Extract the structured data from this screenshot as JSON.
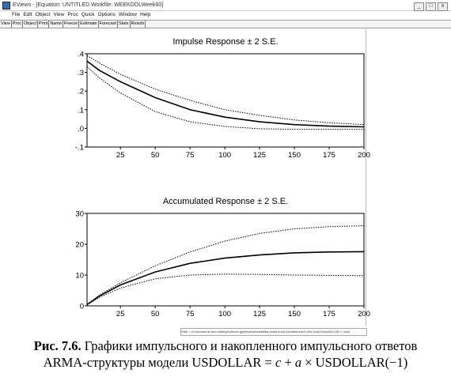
{
  "window": {
    "title": "EViews - [Equation: UNTITLED   Workfile: WEEKDOLWeek60]",
    "controls": [
      "_",
      "□",
      "x"
    ]
  },
  "menu": [
    "File",
    "Edit",
    "Object",
    "View",
    "Proc",
    "Quick",
    "Options",
    "Window",
    "Help"
  ],
  "toolbar": [
    "View",
    "Proc",
    "Object",
    "Print",
    "Name",
    "Freeze",
    "Estimate",
    "Forecast",
    "Stats",
    "Resids"
  ],
  "statusbar": "Path = d:\\documents and settings\\dir\\use.gply\\eviews\\analitika dollar book\\1\\dollarbook\\1 new book\\2month\\1 DB = none",
  "caption": {
    "prefix": "Рис. 7.6.",
    "line1_rest": " Графики импульсного и накопленного импульсного ответов",
    "line2_a": "ARMA-структуры модели USDOLLAR = ",
    "var_c": "c",
    "plus": " + ",
    "var_a": "a",
    "line2_b": " × USDOLLAR(−1)"
  },
  "colors": {
    "line": "#000000",
    "axis": "#000000",
    "background": "#ffffff"
  },
  "chart_data": [
    {
      "type": "line",
      "title": "Impulse Response ± 2 S.E.",
      "xlim": [
        1,
        200
      ],
      "ylim": [
        -0.1,
        0.4
      ],
      "xticks": [
        25,
        50,
        75,
        100,
        125,
        150,
        175,
        200
      ],
      "yticks": [
        -0.1,
        0.0,
        0.1,
        0.2,
        0.3,
        0.4
      ],
      "ytick_labels": [
        "-.1",
        ".0",
        ".1",
        ".2",
        ".3",
        ".4"
      ],
      "x": [
        1,
        10,
        25,
        50,
        75,
        100,
        125,
        150,
        175,
        200
      ],
      "series": [
        {
          "style": "dotted",
          "values": [
            0.39,
            0.35,
            0.29,
            0.21,
            0.15,
            0.1,
            0.07,
            0.045,
            0.03,
            0.02
          ]
        },
        {
          "style": "solid",
          "values": [
            0.36,
            0.31,
            0.25,
            0.165,
            0.1,
            0.06,
            0.035,
            0.02,
            0.012,
            0.008
          ]
        },
        {
          "style": "dotted",
          "values": [
            0.33,
            0.27,
            0.19,
            0.09,
            0.035,
            0.01,
            -0.002,
            -0.005,
            -0.005,
            -0.005
          ]
        }
      ]
    },
    {
      "type": "line",
      "title": "Accumulated Response ± 2 S.E.",
      "xlim": [
        1,
        200
      ],
      "ylim": [
        0,
        30
      ],
      "xticks": [
        25,
        50,
        75,
        100,
        125,
        150,
        175,
        200
      ],
      "yticks": [
        0,
        10,
        20,
        30
      ],
      "ytick_labels": [
        "0",
        "10",
        "20",
        "30"
      ],
      "x": [
        1,
        10,
        25,
        50,
        75,
        100,
        125,
        150,
        175,
        200
      ],
      "series": [
        {
          "style": "dotted",
          "values": [
            0.5,
            3.5,
            7.5,
            13.0,
            17.5,
            21.0,
            23.5,
            25.0,
            25.7,
            26.0
          ]
        },
        {
          "style": "solid",
          "values": [
            0.4,
            3.2,
            6.8,
            11.0,
            13.8,
            15.5,
            16.5,
            17.2,
            17.5,
            17.6
          ]
        },
        {
          "style": "dotted",
          "values": [
            0.3,
            2.8,
            5.8,
            8.8,
            10.0,
            10.3,
            10.2,
            10.0,
            9.9,
            9.8
          ]
        }
      ]
    }
  ]
}
